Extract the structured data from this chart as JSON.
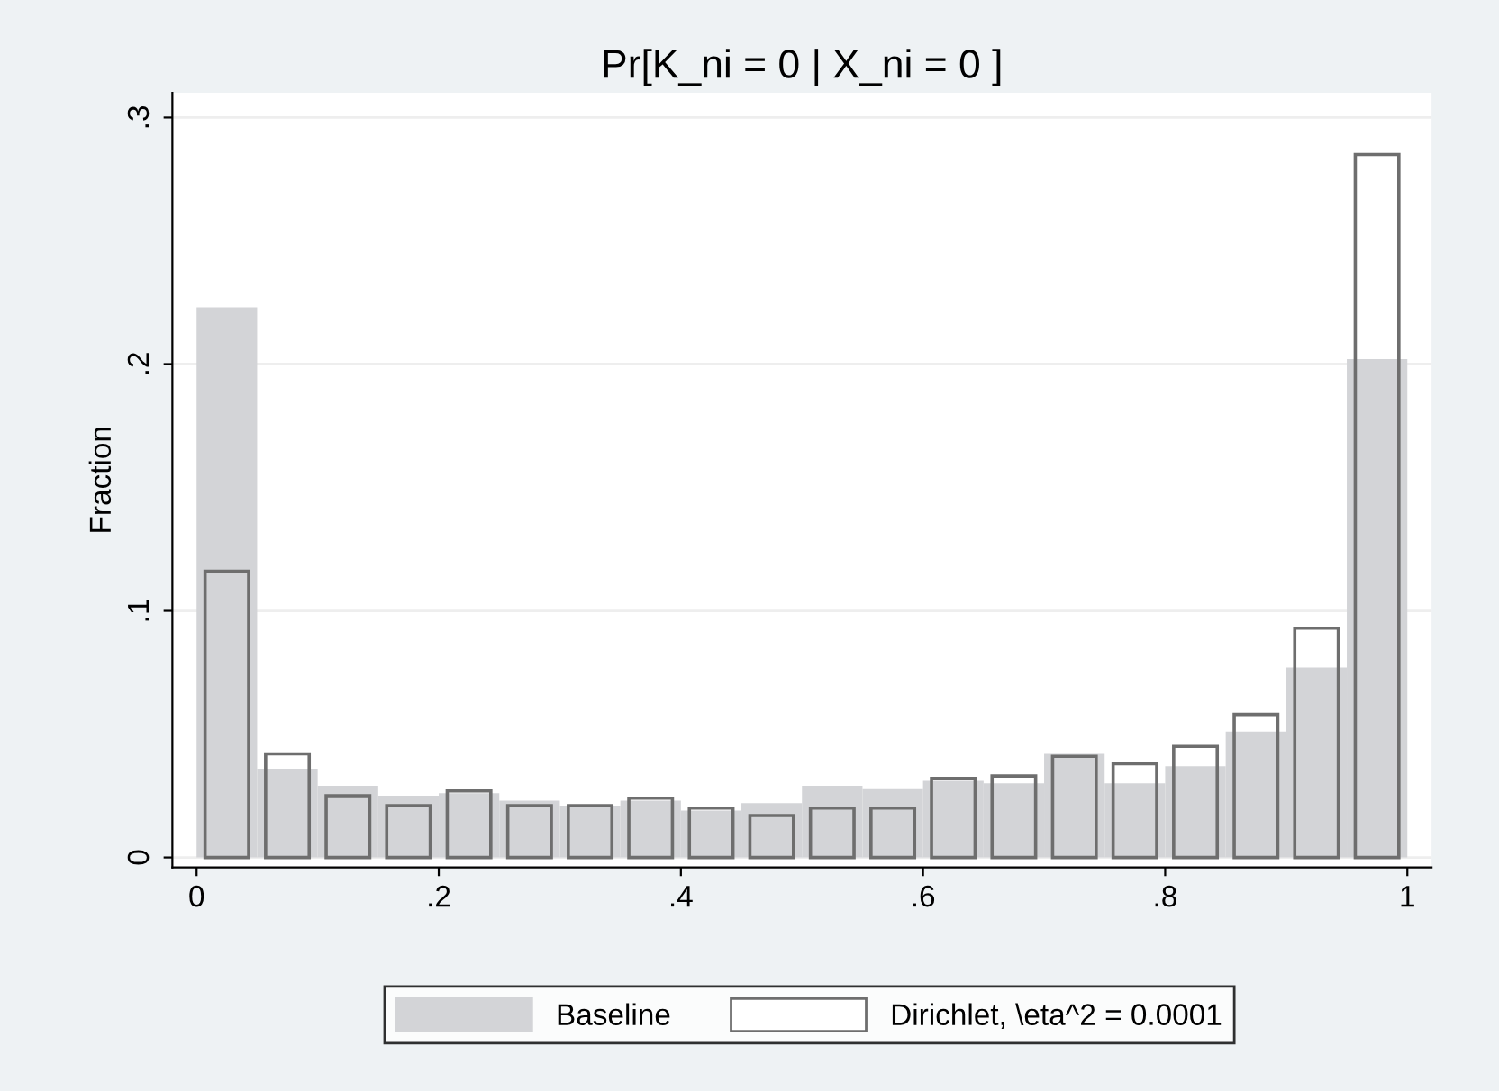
{
  "chart_data": {
    "type": "histogram",
    "title": "Pr[K_ni = 0 | X_ni = 0 ]",
    "ylabel": "Fraction",
    "bins": [
      0,
      0.05,
      0.1,
      0.15,
      0.2,
      0.25,
      0.3,
      0.35,
      0.4,
      0.45,
      0.5,
      0.55,
      0.6,
      0.65,
      0.7,
      0.75,
      0.8,
      0.85,
      0.9,
      0.95,
      1
    ],
    "series": [
      {
        "name": "Baseline",
        "color": "#d3d4d7",
        "values": [
          0.223,
          0.036,
          0.029,
          0.025,
          0.026,
          0.023,
          0.021,
          0.023,
          0.019,
          0.022,
          0.029,
          0.028,
          0.031,
          0.03,
          0.042,
          0.03,
          0.037,
          0.051,
          0.077,
          0.202
        ]
      },
      {
        "name": "Dirichlet, \\eta^2 = 0.0001",
        "color": "#6e6e6e",
        "values": [
          0.116,
          0.042,
          0.025,
          0.021,
          0.027,
          0.021,
          0.021,
          0.024,
          0.02,
          0.017,
          0.02,
          0.02,
          0.032,
          0.033,
          0.041,
          0.038,
          0.045,
          0.058,
          0.093,
          0.285
        ]
      }
    ],
    "xlim": [
      -0.02,
      1.02
    ],
    "xticks": [
      {
        "value": 0,
        "label": "0"
      },
      {
        "value": 0.2,
        "label": ".2"
      },
      {
        "value": 0.4,
        "label": ".4"
      },
      {
        "value": 0.6,
        "label": ".6"
      },
      {
        "value": 0.8,
        "label": ".8"
      },
      {
        "value": 1,
        "label": "1"
      }
    ],
    "ylim": [
      -0.004,
      0.31
    ],
    "yticks": [
      {
        "value": 0,
        "label": "0"
      },
      {
        "value": 0.1,
        "label": ".1"
      },
      {
        "value": 0.2,
        "label": ".2"
      },
      {
        "value": 0.3,
        "label": ".3"
      }
    ],
    "grid": "y",
    "legend": "bottom"
  }
}
